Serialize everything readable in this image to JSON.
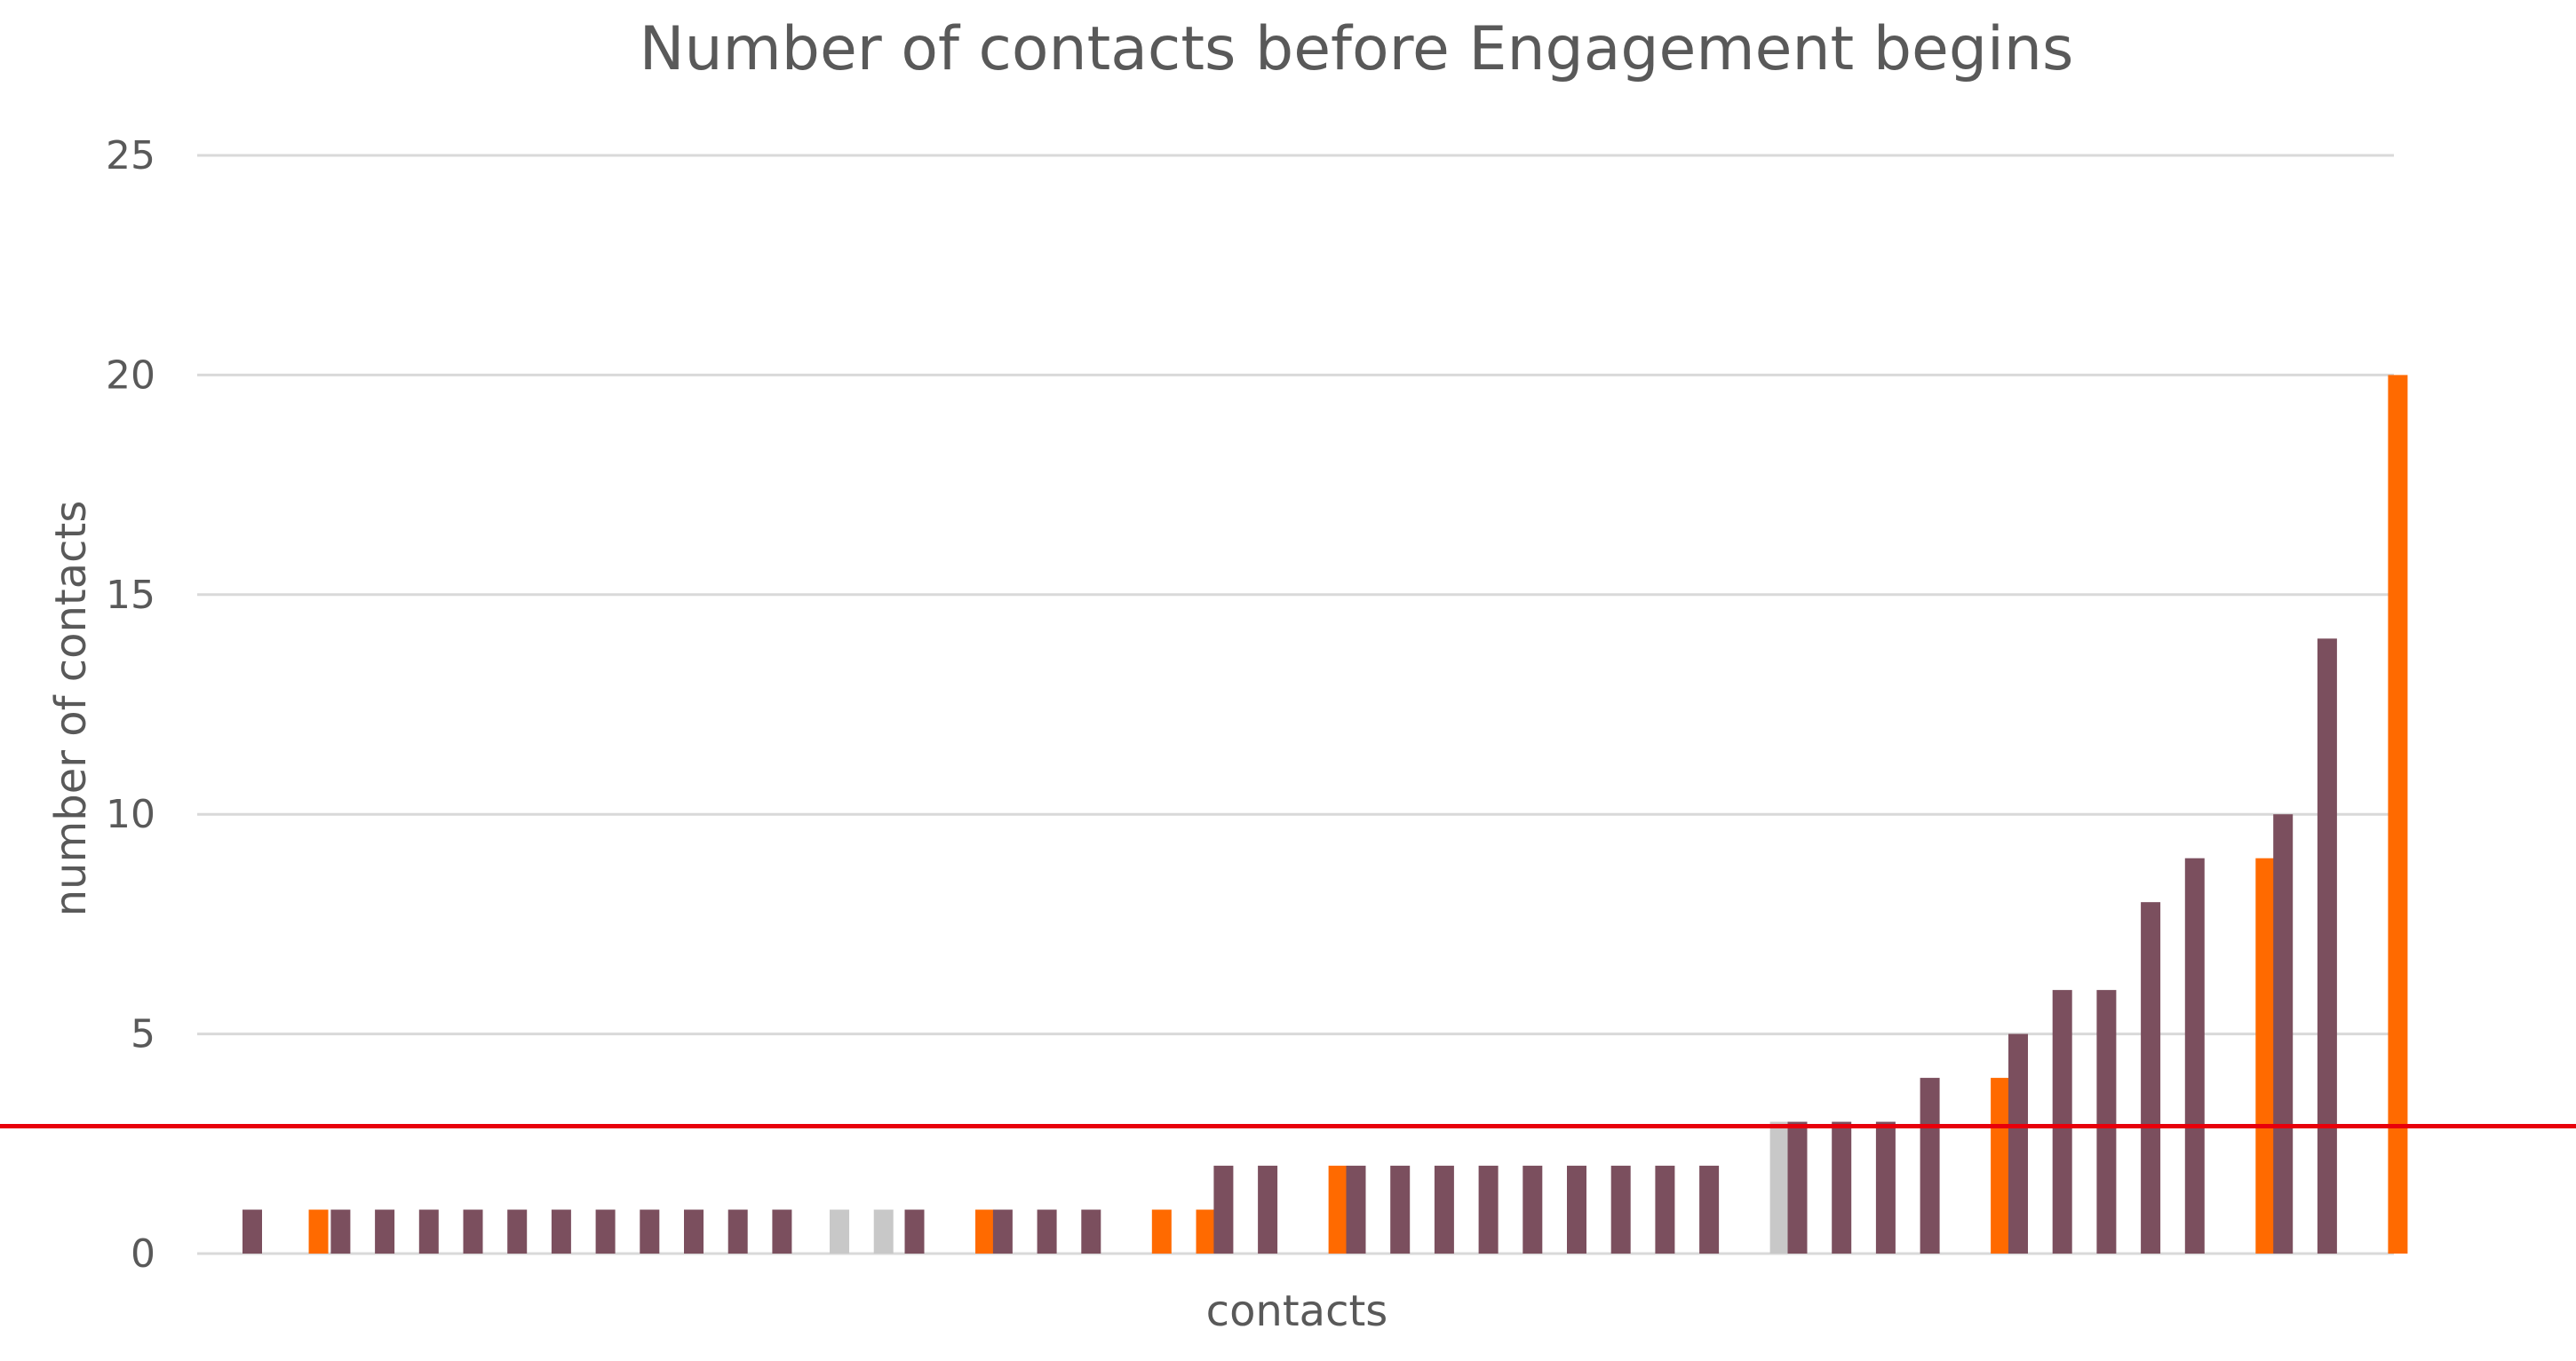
{
  "chart_data": {
    "type": "bar",
    "title": "Number of contacts before Engagement begins",
    "xlabel": "contacts",
    "ylabel": "number of contacts",
    "ylim": [
      0,
      25
    ],
    "yticks": [
      0,
      5,
      10,
      15,
      20,
      25
    ],
    "grid": true,
    "colors": {
      "purple": "#7b4f5e",
      "orange": "#ff6a00",
      "gray": "#c8c8c8",
      "threshold_line": "#e8000b"
    },
    "bars": [
      {
        "slot": 0,
        "value": 1,
        "color": "purple"
      },
      {
        "slot": 1.5,
        "value": 1,
        "color": "orange"
      },
      {
        "slot": 2,
        "value": 1,
        "color": "purple"
      },
      {
        "slot": 3,
        "value": 1,
        "color": "purple"
      },
      {
        "slot": 4,
        "value": 1,
        "color": "purple"
      },
      {
        "slot": 5,
        "value": 1,
        "color": "purple"
      },
      {
        "slot": 6,
        "value": 1,
        "color": "purple"
      },
      {
        "slot": 7,
        "value": 1,
        "color": "purple"
      },
      {
        "slot": 8,
        "value": 1,
        "color": "purple"
      },
      {
        "slot": 9,
        "value": 1,
        "color": "purple"
      },
      {
        "slot": 10,
        "value": 1,
        "color": "purple"
      },
      {
        "slot": 11,
        "value": 1,
        "color": "purple"
      },
      {
        "slot": 12,
        "value": 1,
        "color": "purple"
      },
      {
        "slot": 13.3,
        "value": 1,
        "color": "gray"
      },
      {
        "slot": 14.3,
        "value": 1,
        "color": "gray"
      },
      {
        "slot": 15,
        "value": 1,
        "color": "purple"
      },
      {
        "slot": 16.6,
        "value": 1,
        "color": "orange"
      },
      {
        "slot": 17,
        "value": 1,
        "color": "purple"
      },
      {
        "slot": 18,
        "value": 1,
        "color": "purple"
      },
      {
        "slot": 19,
        "value": 1,
        "color": "purple"
      },
      {
        "slot": 20.6,
        "value": 1,
        "color": "orange"
      },
      {
        "slot": 21.6,
        "value": 1,
        "color": "orange"
      },
      {
        "slot": 22,
        "value": 2,
        "color": "purple"
      },
      {
        "slot": 23,
        "value": 2,
        "color": "purple"
      },
      {
        "slot": 24.6,
        "value": 2,
        "color": "orange"
      },
      {
        "slot": 25,
        "value": 2,
        "color": "purple"
      },
      {
        "slot": 26,
        "value": 2,
        "color": "purple"
      },
      {
        "slot": 27,
        "value": 2,
        "color": "purple"
      },
      {
        "slot": 28,
        "value": 2,
        "color": "purple"
      },
      {
        "slot": 29,
        "value": 2,
        "color": "purple"
      },
      {
        "slot": 30,
        "value": 2,
        "color": "purple"
      },
      {
        "slot": 31,
        "value": 2,
        "color": "purple"
      },
      {
        "slot": 32,
        "value": 2,
        "color": "purple"
      },
      {
        "slot": 33,
        "value": 2,
        "color": "purple"
      },
      {
        "slot": 34.6,
        "value": 3,
        "color": "gray"
      },
      {
        "slot": 35,
        "value": 3,
        "color": "purple"
      },
      {
        "slot": 36,
        "value": 3,
        "color": "purple"
      },
      {
        "slot": 37,
        "value": 3,
        "color": "purple"
      },
      {
        "slot": 38,
        "value": 4,
        "color": "purple"
      },
      {
        "slot": 39.6,
        "value": 4,
        "color": "orange"
      },
      {
        "slot": 40,
        "value": 5,
        "color": "purple"
      },
      {
        "slot": 41,
        "value": 6,
        "color": "purple"
      },
      {
        "slot": 42,
        "value": 6,
        "color": "purple"
      },
      {
        "slot": 43,
        "value": 8,
        "color": "purple"
      },
      {
        "slot": 44,
        "value": 9,
        "color": "purple"
      },
      {
        "slot": 45.6,
        "value": 9,
        "color": "orange"
      },
      {
        "slot": 46,
        "value": 10,
        "color": "purple"
      },
      {
        "slot": 47,
        "value": 14,
        "color": "purple"
      },
      {
        "slot": 48.6,
        "value": 20,
        "color": "orange"
      }
    ],
    "threshold": 2.9
  }
}
